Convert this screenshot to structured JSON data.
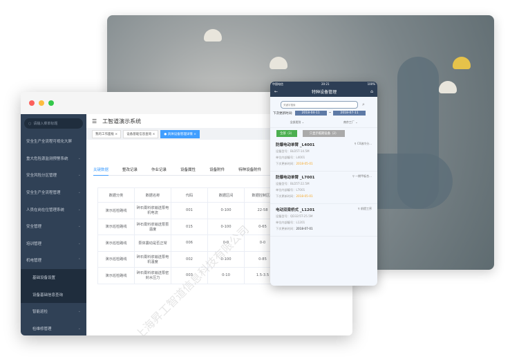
{
  "desktop": {
    "app_title": "工智道演示系统",
    "search_placeholder": "请输入菜单标题",
    "sidebar": [
      {
        "label": "安全生产全流程可视化大屏",
        "chev": ""
      },
      {
        "label": "重大危险源监测预警系统",
        "chev": "⌄"
      },
      {
        "label": "安全风险分区管理",
        "chev": "⌄"
      },
      {
        "label": "安全生产全流程管理",
        "chev": "⌄"
      },
      {
        "label": "人员在岗在位管理系统",
        "chev": "⌄"
      },
      {
        "label": "安全管理",
        "chev": "⌄"
      },
      {
        "label": "培训管理",
        "chev": "⌄"
      },
      {
        "label": "机电管理",
        "chev": "⌃"
      }
    ],
    "sidebar_sub": [
      "基础设备设置",
      "设备基础信息查询"
    ],
    "sidebar_sub2": [
      {
        "label": "智能巡检",
        "chev": "⌄"
      },
      {
        "label": "检维修管理",
        "chev": "⌄"
      }
    ],
    "tags": [
      "我的工作面板 ×",
      "设备基础信息查询 ×",
      "● 具体设备管理详情 ×"
    ],
    "tabs": [
      "关键数据",
      "整改记录",
      "作业记录",
      "设备属性",
      "设备附件",
      "特种设备附件"
    ],
    "table": {
      "headers": [
        "数据分类",
        "数据名称",
        "代码",
        "数据区间",
        "数据控制区间"
      ],
      "rows": [
        [
          "演示巡检路线",
          "碎石膏料浆输送泵电机电流",
          "001",
          "0-100",
          "22-58"
        ],
        [
          "演示巡检路线",
          "碎石膏料浆输送泵泵温度",
          "015",
          "0-100",
          "0-65"
        ],
        [
          "演示巡检路线",
          "泵体震动是否正常",
          "006",
          "0-0",
          "0-0"
        ],
        [
          "演示巡检路线",
          "碎石膏料浆输送泵电机温度",
          "002",
          "0-100",
          "0-85"
        ],
        [
          "演示巡检路线",
          "碎石膏料浆输送泵密封水压力",
          "003",
          "0-10",
          "1.5-3.5"
        ]
      ]
    },
    "watermark": "上海昇工智道信息科技有限公司"
  },
  "phone": {
    "carrier": "中国电信",
    "time": "20:21",
    "battery": "100%",
    "title": "特种设备管理",
    "search_placeholder": "关键字搜索",
    "date_label": "下次更新时间:",
    "date_from": "2018-04-11",
    "date_sep": "~",
    "date_to": "2018-07-11",
    "filter_type": "全部类别 ⌄",
    "filter_factory": "南京工厂 ⌄",
    "btn_all": "全部（3）",
    "btn_expiring": "只显示临期设备（2）",
    "cards": [
      {
        "name": "防爆电动单臂 _L4001",
        "loc": "C0溶冷分...",
        "model": "设备型号：BLD5T-14.5M",
        "code": "单位内部编号：L4001",
        "next_label": "下次更新时间：",
        "next": "2018-05-01",
        "warn": true
      },
      {
        "name": "防爆电动单臂 _L7001",
        "loc": "一期甲板合...",
        "model": "设备型号：BLD5T-22.5M",
        "code": "单位内部编号：L7001",
        "next_label": "下次更新时间：",
        "next": "2018-05-01",
        "warn": true
      },
      {
        "name": "电动双梁桥式 _L1201",
        "loc": "前提工序",
        "model": "设备型号：QD32/5T-25.5M",
        "code": "单位内部编号：L1201",
        "next_label": "下次更新时间：",
        "next": "2018-07-01",
        "warn": false
      }
    ]
  },
  "colors": {
    "sidebar": "#304156",
    "accent": "#409eff",
    "phone_nav": "#2d3e55",
    "warn": "#f5a623",
    "green": "#4caf50"
  }
}
